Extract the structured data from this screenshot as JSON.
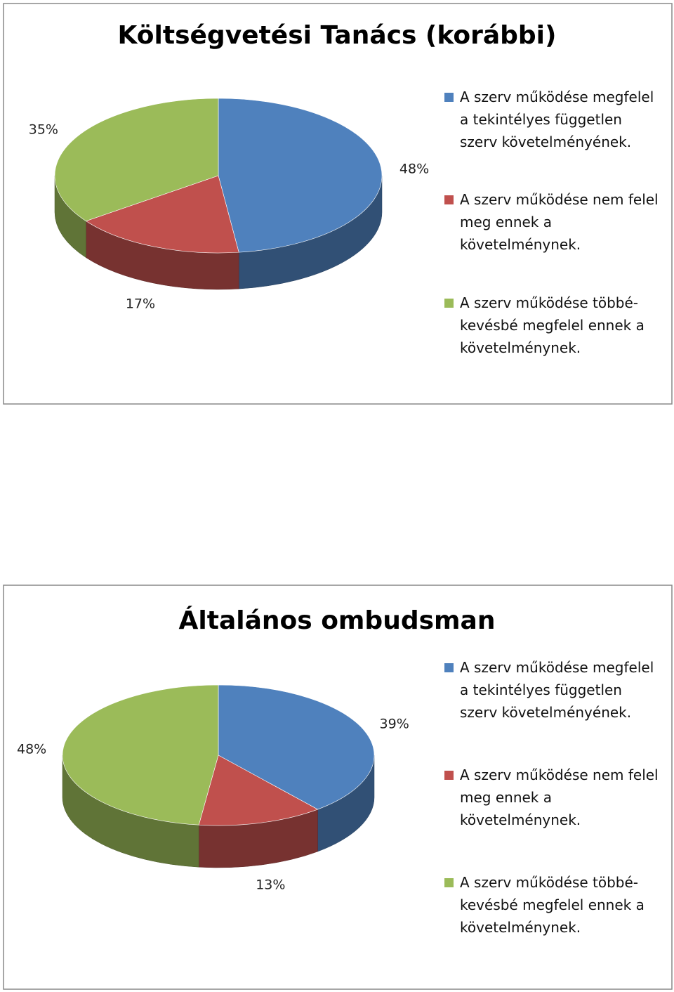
{
  "chart_data": [
    {
      "type": "pie3d",
      "title": "Költségvetési Tanács (korábbi)",
      "categories": [
        "A szerv működése megfelel a tekintélyes független szerv követelményének.",
        "A szerv működése nem felel meg ennek a követelménynek.",
        "A szerv működése többé-kevésbé megfelel ennek a követelménynek."
      ],
      "values": [
        48,
        17,
        35
      ],
      "value_labels": [
        "48%",
        "17%",
        "35%"
      ],
      "colors": [
        "#4f81bd",
        "#c0504d",
        "#9bbb59"
      ]
    },
    {
      "type": "pie3d",
      "title": "Általános ombudsman",
      "categories": [
        "A szerv működése megfelel a tekintélyes független szerv követelményének.",
        "A szerv működése nem felel meg ennek a követelménynek.",
        "A szerv működése többé-kevésbé megfelel ennek a követelménynek."
      ],
      "values": [
        39,
        13,
        48
      ],
      "value_labels": [
        "39%",
        "13%",
        "48%"
      ],
      "colors": [
        "#4f81bd",
        "#c0504d",
        "#9bbb59"
      ]
    }
  ]
}
